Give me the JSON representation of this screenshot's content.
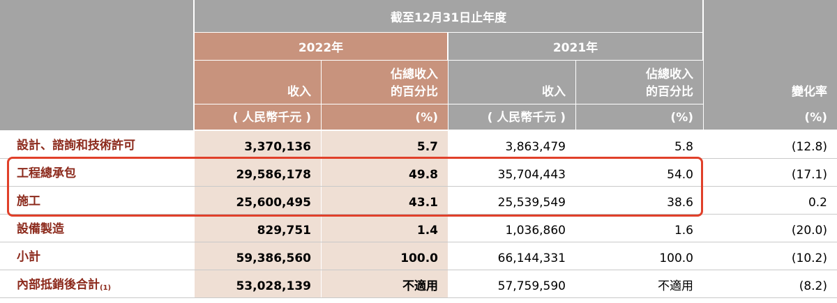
{
  "header": {
    "period": "截至12月31日止年度",
    "year_2022": "2022年",
    "year_2021": "2021年",
    "revenue": "收入",
    "share": [
      "佔總收入",
      "的百分比"
    ],
    "change": "變化率",
    "unit_revenue": "( 人民幣千元 )",
    "unit_pct": "(%)"
  },
  "rows": [
    {
      "label": "設計、諮詢和技術許可",
      "cells": [
        "3,370,136",
        "5.7",
        "3,863,479",
        "5.8",
        "(12.8)"
      ]
    },
    {
      "label": "工程總承包",
      "cells": [
        "29,586,178",
        "49.8",
        "35,704,443",
        "54.0",
        "(17.1)"
      ]
    },
    {
      "label": "施工",
      "cells": [
        "25,600,495",
        "43.1",
        "25,539,549",
        "38.6",
        "0.2"
      ]
    },
    {
      "label": "設備製造",
      "cells": [
        "829,751",
        "1.4",
        "1,036,860",
        "1.6",
        "(20.0)"
      ]
    },
    {
      "label": "小計",
      "cells": [
        "59,386,560",
        "100.0",
        "66,144,331",
        "100.0",
        "(10.2)"
      ]
    },
    {
      "label": "內部抵銷後合計",
      "note": "(1)",
      "cells": [
        "53,028,139",
        "不適用",
        "57,759,590",
        "不適用",
        "(8.2)"
      ]
    }
  ]
}
